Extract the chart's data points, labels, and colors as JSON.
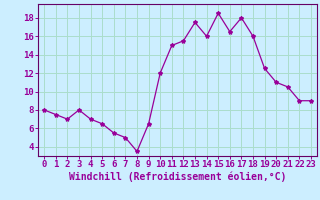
{
  "x": [
    0,
    1,
    2,
    3,
    4,
    5,
    6,
    7,
    8,
    9,
    10,
    11,
    12,
    13,
    14,
    15,
    16,
    17,
    18,
    19,
    20,
    21,
    22,
    23
  ],
  "y": [
    8.0,
    7.5,
    7.0,
    8.0,
    7.0,
    6.5,
    5.5,
    5.0,
    3.5,
    6.5,
    12.0,
    15.0,
    15.5,
    17.5,
    16.0,
    18.5,
    16.5,
    18.0,
    16.0,
    12.5,
    11.0,
    10.5,
    9.0,
    9.0
  ],
  "line_color": "#990099",
  "marker": "*",
  "marker_size": 3,
  "bg_color": "#cceeff",
  "grid_color": "#aaddcc",
  "xlabel": "Windchill (Refroidissement éolien,°C)",
  "xlabel_color": "#990099",
  "yticks": [
    4,
    6,
    8,
    10,
    12,
    14,
    16,
    18
  ],
  "ylim": [
    3.0,
    19.5
  ],
  "xlim": [
    -0.5,
    23.5
  ],
  "tick_color": "#990099",
  "spine_color": "#660066",
  "font_size": 6.5,
  "xlabel_font_size": 7.0
}
